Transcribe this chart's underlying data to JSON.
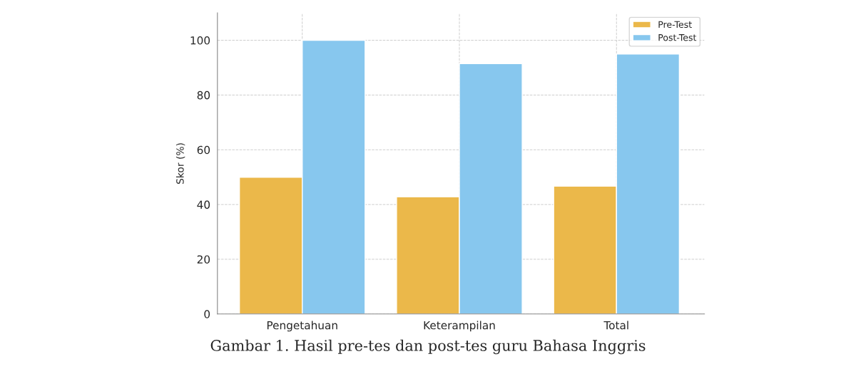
{
  "chart_data": {
    "type": "bar",
    "ylabel": "Skor (%)",
    "categories": [
      "Pengetahuan",
      "Keterampilan",
      "Total"
    ],
    "series": [
      {
        "name": "Pre-Test",
        "color": "#ebb84a",
        "values": [
          50,
          42.8,
          46.7
        ]
      },
      {
        "name": "Post-Test",
        "color": "#87c7ee",
        "values": [
          100,
          91.5,
          95
        ]
      }
    ],
    "ylim": [
      0,
      110
    ],
    "yticks": [
      0,
      20,
      40,
      60,
      80,
      100
    ],
    "grid": true,
    "legend": "top right",
    "annotations": [
      "Gambar 1. Hasil pre-tes dan post-tes guru Bahasa Inggris"
    ]
  }
}
